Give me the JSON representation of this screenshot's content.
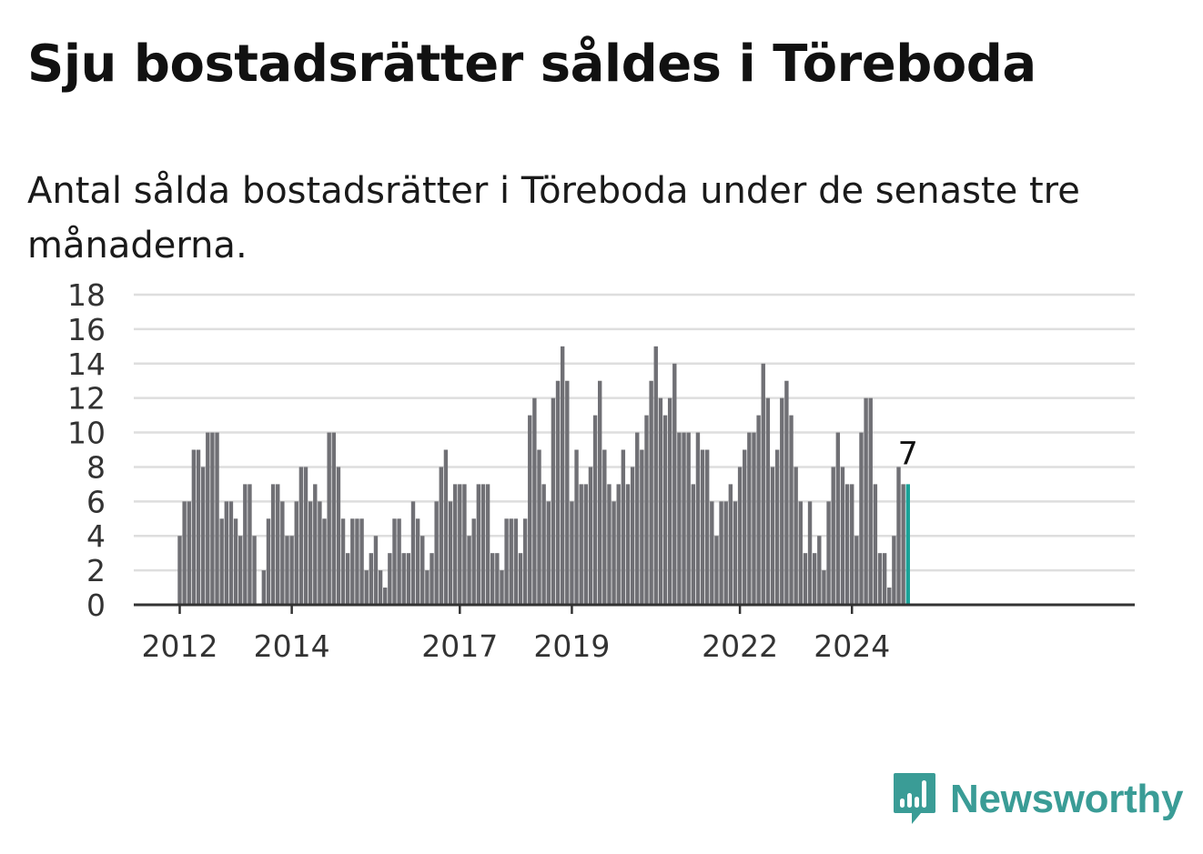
{
  "header": {
    "title": "Sju bostadsrätter såldes i Töreboda",
    "subtitle": "Antal sålda bostadsrätter i Töreboda under de senaste tre månaderna."
  },
  "brand": {
    "name": "Newsworthy",
    "icon": "newsworthy-logo-icon"
  },
  "colors": {
    "bar": "#707075",
    "highlight": "#1aa398",
    "grid": "#dedede",
    "axis": "#333333",
    "brand": "#3a9c96"
  },
  "chart_data": {
    "type": "bar",
    "title": "Sju bostadsrätter såldes i Töreboda",
    "subtitle": "Antal sålda bostadsrätter i Töreboda under de senaste tre månaderna.",
    "xlabel": "",
    "ylabel": "",
    "ylim": [
      0,
      18
    ],
    "yticks": [
      0,
      2,
      4,
      6,
      8,
      10,
      12,
      14,
      16,
      18
    ],
    "xticks": [
      "2012",
      "2014",
      "2017",
      "2019",
      "2022",
      "2024"
    ],
    "grid": true,
    "x_start": "2012-01",
    "frequency": "monthly",
    "highlight_last": true,
    "last_value_label": "7",
    "values": [
      4,
      6,
      6,
      9,
      9,
      8,
      10,
      10,
      10,
      5,
      6,
      6,
      5,
      4,
      7,
      7,
      4,
      0,
      2,
      5,
      7,
      7,
      6,
      4,
      4,
      6,
      8,
      8,
      6,
      7,
      6,
      5,
      10,
      10,
      8,
      5,
      3,
      5,
      5,
      5,
      2,
      3,
      4,
      2,
      1,
      3,
      5,
      5,
      3,
      3,
      6,
      5,
      4,
      2,
      3,
      6,
      8,
      9,
      6,
      7,
      7,
      7,
      4,
      5,
      7,
      7,
      7,
      3,
      3,
      2,
      5,
      5,
      5,
      3,
      5,
      11,
      12,
      9,
      7,
      6,
      12,
      13,
      15,
      13,
      6,
      9,
      7,
      7,
      8,
      11,
      13,
      9,
      7,
      6,
      7,
      9,
      7,
      8,
      10,
      9,
      11,
      13,
      15,
      12,
      11,
      12,
      14,
      10,
      10,
      10,
      7,
      10,
      9,
      9,
      6,
      4,
      6,
      6,
      7,
      6,
      8,
      9,
      10,
      10,
      11,
      14,
      12,
      8,
      9,
      12,
      13,
      11,
      8,
      6,
      3,
      6,
      3,
      4,
      2,
      6,
      8,
      10,
      8,
      7,
      7,
      4,
      10,
      12,
      12,
      7,
      3,
      3,
      1,
      4,
      8,
      7,
      7
    ]
  }
}
